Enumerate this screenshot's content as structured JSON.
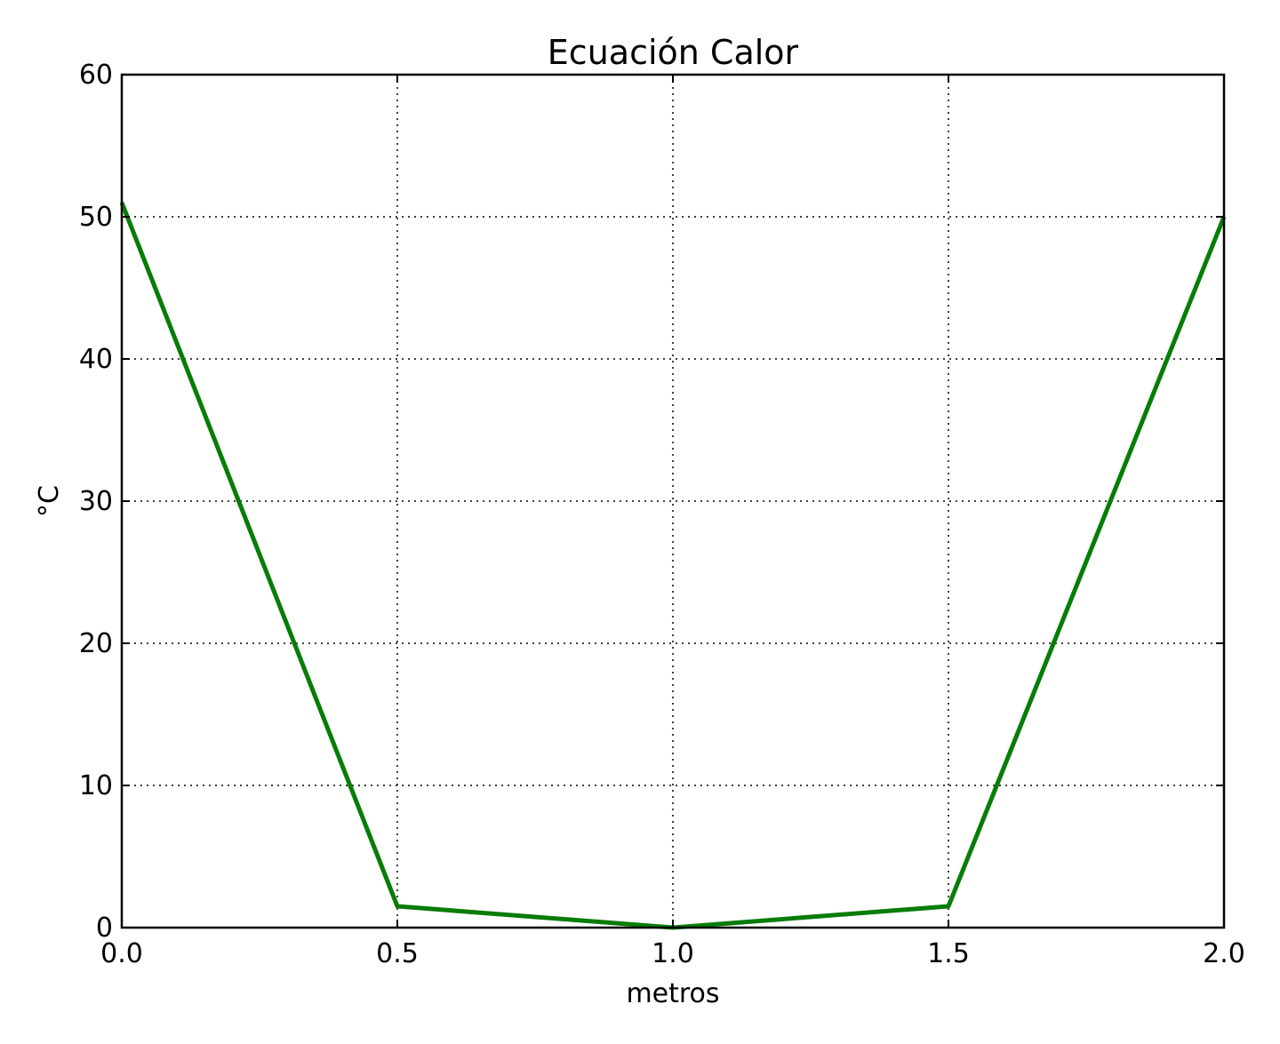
{
  "chart_data": {
    "type": "line",
    "title": "Ecuación Calor",
    "xlabel": "metros",
    "ylabel": "°C",
    "xlim": [
      0.0,
      2.0
    ],
    "ylim": [
      0,
      60
    ],
    "x_ticks": [
      0.0,
      0.5,
      1.0,
      1.5,
      2.0
    ],
    "x_tick_labels": [
      "0.0",
      "0.5",
      "1.0",
      "1.5",
      "2.0"
    ],
    "y_ticks": [
      0,
      10,
      20,
      30,
      40,
      50,
      60
    ],
    "y_tick_labels": [
      "0",
      "10",
      "20",
      "30",
      "40",
      "50",
      "60"
    ],
    "grid": true,
    "series": [
      {
        "x": [
          0.0,
          0.5,
          1.0,
          1.5,
          2.0
        ],
        "y": [
          51,
          1.5,
          0,
          1.5,
          50
        ],
        "color": "#087c08"
      }
    ]
  }
}
